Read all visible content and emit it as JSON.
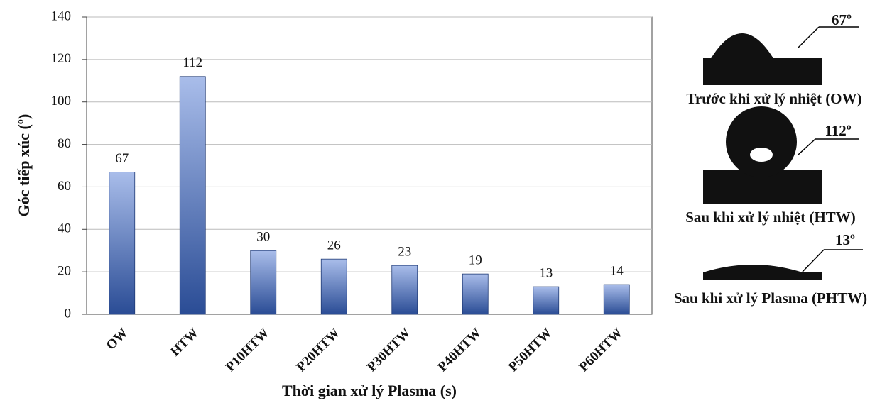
{
  "chart_data": {
    "type": "bar",
    "y_label": "Góc tiếp xúc (º)",
    "x_label": "Thời gian xử lý Plasma (s)",
    "categories": [
      "OW",
      "HTW",
      "P10HTW",
      "P20HTW",
      "P30HTW",
      "P40HTW",
      "P50HTW",
      "P60HTW"
    ],
    "values": [
      67,
      112,
      30,
      26,
      23,
      19,
      13,
      14
    ],
    "color": "#4a6fc0",
    "ylim": [
      0,
      140
    ],
    "yticks": [
      0,
      20,
      40,
      60,
      80,
      100,
      120,
      140
    ],
    "grid": true,
    "annotations": [
      {
        "angle": "67º",
        "caption": "Trước khi xử lý nhiệt (OW)"
      },
      {
        "angle": "112º",
        "caption": "Sau khi xử lý nhiệt (HTW)"
      },
      {
        "angle": "13º",
        "caption": "Sau khi xử lý Plasma (PHTW)"
      }
    ]
  }
}
